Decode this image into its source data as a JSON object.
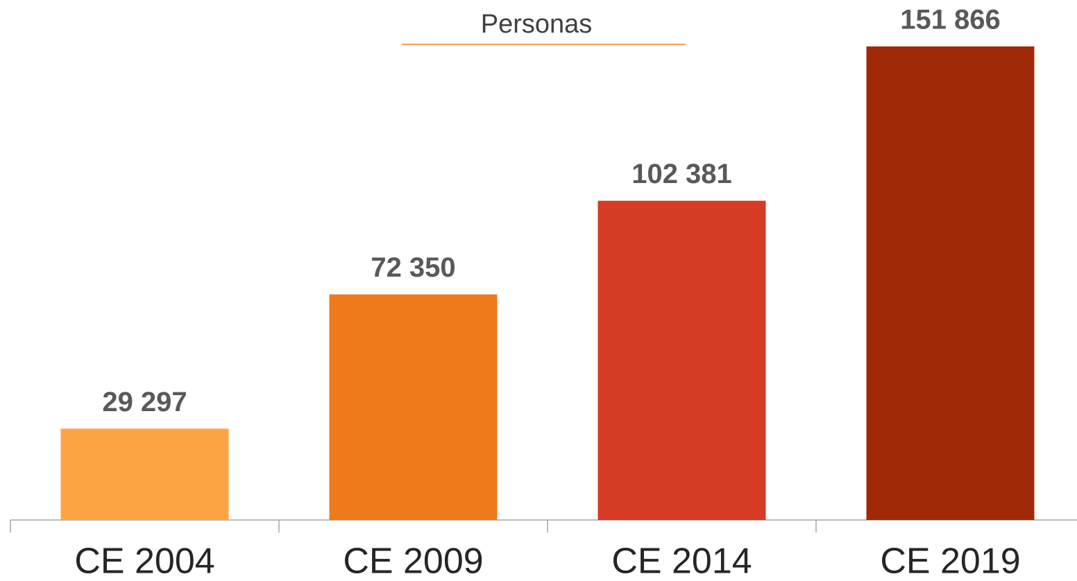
{
  "chart_data": {
    "type": "bar",
    "title": "Personas",
    "categories": [
      "CE 2004",
      "CE 2009",
      "CE 2014",
      "CE 2019"
    ],
    "values": [
      29297,
      72350,
      102381,
      151866
    ],
    "value_labels": [
      "29 297",
      "72 350",
      "102 381",
      "151 866"
    ],
    "colors": [
      "#fca443",
      "#ef7a1a",
      "#d63b25",
      "#a02a08"
    ]
  }
}
